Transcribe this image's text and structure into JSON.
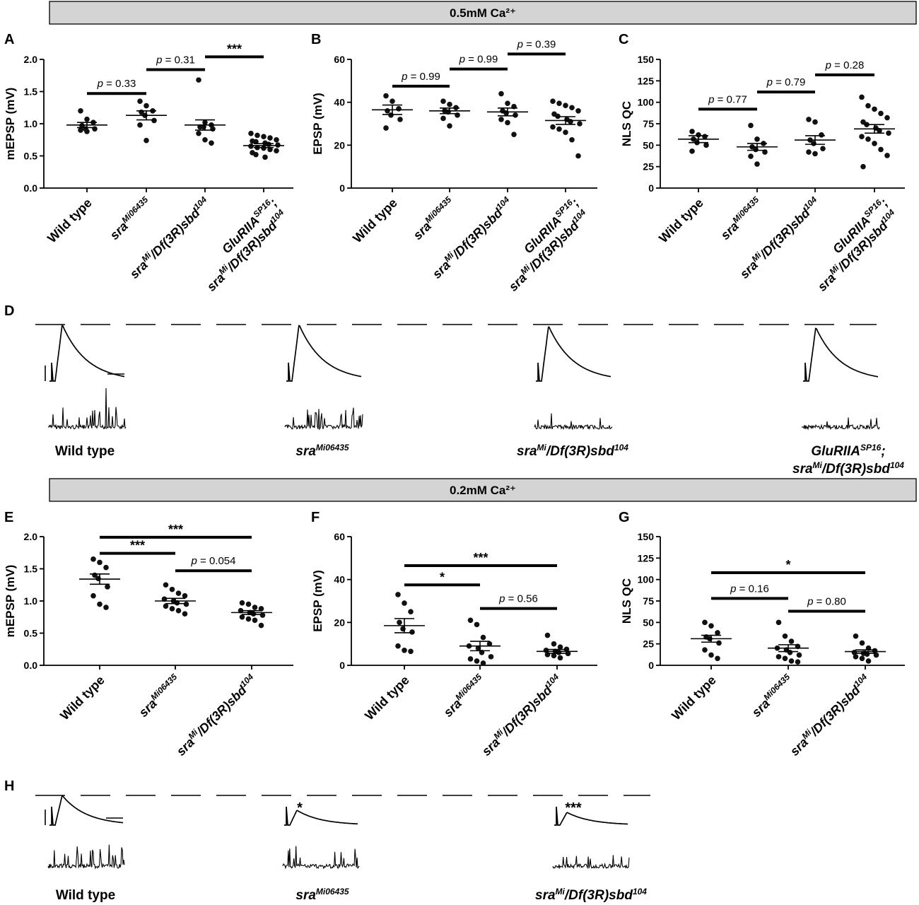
{
  "banners": {
    "top": "0.5mM Ca²⁺",
    "bottom": "0.2mM Ca²⁺"
  },
  "genotypes": {
    "wt": [
      {
        "t": "Wild type",
        "it": false
      }
    ],
    "sra": [
      {
        "t": "sra",
        "it": true
      },
      {
        "t": "Mi06435",
        "it": true,
        "sup": true
      }
    ],
    "sraDf": [
      {
        "t": "sra",
        "it": true
      },
      {
        "t": "Mi",
        "it": true,
        "sup": true
      },
      {
        "t": "/Df(3R)sbd",
        "it": true
      },
      {
        "t": "104",
        "it": true,
        "sup": true
      }
    ],
    "glu1": [
      {
        "t": "GluRIIA",
        "it": true
      },
      {
        "t": "SP16",
        "it": true,
        "sup": true
      },
      {
        "t": ";",
        "it": true
      }
    ],
    "glu2": [
      {
        "t": "sra",
        "it": true
      },
      {
        "t": "Mi",
        "it": true,
        "sup": true
      },
      {
        "t": "/Df(3R)sbd",
        "it": true
      },
      {
        "t": "104",
        "it": true,
        "sup": true
      }
    ]
  },
  "chart_data": [
    {
      "panel": "A",
      "type": "scatter",
      "ylabel": "mEPSP (mV)",
      "ylim": [
        0,
        2.0
      ],
      "yticks": [
        0,
        0.5,
        1.0,
        1.5,
        2.0
      ],
      "ytick_labels": [
        "0.0",
        "0.5",
        "1.0",
        "1.5",
        "2.0"
      ],
      "categories": [
        "Wild type",
        "sraMi06435",
        "sraMi/Df(3R)sbd104",
        "GluRIIASP16; sraMi/Df(3R)sbd104"
      ],
      "groups": [
        {
          "mean": 0.98,
          "sem": 0.04,
          "points": [
            1.2,
            1.07,
            1.02,
            0.97,
            0.92,
            0.92,
            0.9,
            0.88
          ]
        },
        {
          "mean": 1.13,
          "sem": 0.07,
          "points": [
            1.35,
            1.28,
            1.2,
            1.18,
            1.13,
            1.05,
            0.98,
            0.74
          ]
        },
        {
          "mean": 0.98,
          "sem": 0.08,
          "points": [
            1.68,
            1.02,
            0.98,
            0.95,
            0.95,
            0.92,
            0.85,
            0.75,
            0.7
          ]
        },
        {
          "mean": 0.66,
          "sem": 0.03,
          "points": [
            0.85,
            0.82,
            0.8,
            0.78,
            0.75,
            0.73,
            0.72,
            0.7,
            0.68,
            0.67,
            0.65,
            0.63,
            0.62,
            0.6,
            0.58,
            0.55,
            0.52,
            0.48
          ]
        }
      ],
      "comparisons": [
        {
          "from": 0,
          "to": 1,
          "y": 1.47,
          "label": "p = 0.33"
        },
        {
          "from": 1,
          "to": 2,
          "y": 1.84,
          "label": "p = 0.31"
        },
        {
          "from": 2,
          "to": 3,
          "y": 2.04,
          "label": "***"
        }
      ]
    },
    {
      "panel": "B",
      "type": "scatter",
      "ylabel": "EPSP (mV)",
      "ylim": [
        0,
        60
      ],
      "yticks": [
        0,
        20,
        40,
        60
      ],
      "ytick_labels": [
        "0",
        "20",
        "40",
        "60"
      ],
      "categories": [
        "Wild type",
        "sraMi06435",
        "sraMi/Df(3R)sbd104",
        "GluRIIASP16; sraMi/Df(3R)sbd104"
      ],
      "groups": [
        {
          "mean": 36.5,
          "sem": 2.2,
          "points": [
            43,
            40.5,
            37,
            36,
            34,
            32,
            28
          ]
        },
        {
          "mean": 36,
          "sem": 1.3,
          "points": [
            40.5,
            39,
            37.5,
            36,
            35.5,
            34,
            32.5,
            29
          ]
        },
        {
          "mean": 35.5,
          "sem": 1.8,
          "points": [
            44,
            39.5,
            38,
            36,
            35,
            34,
            32,
            30.5,
            25
          ]
        },
        {
          "mean": 31.5,
          "sem": 1.8,
          "points": [
            40.5,
            39.5,
            38.5,
            37.5,
            36,
            34.5,
            33.5,
            32,
            31,
            30,
            28.5,
            27.5,
            26,
            22.5,
            15
          ]
        }
      ],
      "comparisons": [
        {
          "from": 0,
          "to": 1,
          "y": 47.5,
          "label": "p = 0.99"
        },
        {
          "from": 1,
          "to": 2,
          "y": 55.5,
          "label": "p = 0.99"
        },
        {
          "from": 2,
          "to": 3,
          "y": 62.5,
          "label": "p = 0.39"
        }
      ]
    },
    {
      "panel": "C",
      "type": "scatter",
      "ylabel": "NLS QC",
      "ylim": [
        0,
        150
      ],
      "yticks": [
        0,
        25,
        50,
        75,
        100,
        125,
        150
      ],
      "ytick_labels": [
        "0",
        "25",
        "50",
        "75",
        "100",
        "125",
        "150"
      ],
      "categories": [
        "Wild type",
        "sraMi06435",
        "sraMi/Df(3R)sbd104",
        "GluRIIASP16; sraMi/Df(3R)sbd104"
      ],
      "groups": [
        {
          "mean": 57,
          "sem": 4,
          "points": [
            66,
            62,
            60,
            57,
            53,
            50,
            43
          ]
        },
        {
          "mean": 48,
          "sem": 4,
          "points": [
            73,
            57,
            52,
            48,
            45,
            42,
            37,
            28
          ]
        },
        {
          "mean": 56,
          "sem": 5,
          "points": [
            80,
            77,
            62,
            56,
            52,
            46,
            42,
            40
          ]
        },
        {
          "mean": 69,
          "sem": 5,
          "points": [
            106,
            96,
            92,
            87,
            82,
            77,
            74,
            70,
            67,
            64,
            60,
            57,
            52,
            45,
            38,
            25
          ]
        }
      ],
      "comparisons": [
        {
          "from": 0,
          "to": 1,
          "y": 92,
          "label": "p = 0.77"
        },
        {
          "from": 1,
          "to": 2,
          "y": 112,
          "label": "p = 0.79"
        },
        {
          "from": 2,
          "to": 3,
          "y": 132,
          "label": "p = 0.28"
        }
      ]
    },
    {
      "panel": "E",
      "type": "scatter",
      "ylabel": "mEPSP (mV)",
      "ylim": [
        0,
        2.0
      ],
      "yticks": [
        0,
        0.5,
        1.0,
        1.5,
        2.0
      ],
      "ytick_labels": [
        "0.0",
        "0.5",
        "1.0",
        "1.5",
        "2.0"
      ],
      "categories": [
        "Wild type",
        "sraMi06435",
        "sraMi/Df(3R)sbd104"
      ],
      "groups": [
        {
          "mean": 1.34,
          "sem": 0.08,
          "points": [
            1.65,
            1.6,
            1.52,
            1.4,
            1.35,
            1.22,
            1.08,
            0.95,
            0.9
          ]
        },
        {
          "mean": 1.0,
          "sem": 0.04,
          "points": [
            1.25,
            1.18,
            1.12,
            1.08,
            1.03,
            1.0,
            0.97,
            0.95,
            0.92,
            0.88,
            0.85,
            0.8
          ]
        },
        {
          "mean": 0.82,
          "sem": 0.03,
          "points": [
            0.97,
            0.95,
            0.9,
            0.88,
            0.85,
            0.82,
            0.8,
            0.78,
            0.75,
            0.72,
            0.7,
            0.62
          ]
        }
      ],
      "comparisons": [
        {
          "from": 0,
          "to": 2,
          "y": 1.99,
          "label": "***"
        },
        {
          "from": 0,
          "to": 1,
          "y": 1.74,
          "label": "***"
        },
        {
          "from": 1,
          "to": 2,
          "y": 1.47,
          "label": "p = 0.054"
        }
      ]
    },
    {
      "panel": "F",
      "type": "scatter",
      "ylabel": "EPSP (mV)",
      "ylim": [
        0,
        60
      ],
      "yticks": [
        0,
        20,
        40,
        60
      ],
      "ytick_labels": [
        "0",
        "20",
        "40",
        "60"
      ],
      "categories": [
        "Wild type",
        "sraMi06435",
        "sraMi/Df(3R)sbd104"
      ],
      "groups": [
        {
          "mean": 18.5,
          "sem": 3.3,
          "points": [
            33,
            29,
            25,
            20,
            17,
            15.5,
            9,
            7,
            6.5
          ]
        },
        {
          "mean": 9,
          "sem": 2.2,
          "points": [
            21,
            19,
            13,
            10,
            9,
            8,
            6,
            4,
            3,
            2,
            1
          ]
        },
        {
          "mean": 6.5,
          "sem": 0.9,
          "points": [
            14,
            10,
            8.5,
            7.5,
            7,
            6.5,
            6,
            5.5,
            5,
            4.5,
            3.5
          ]
        }
      ],
      "comparisons": [
        {
          "from": 0,
          "to": 2,
          "y": 46.5,
          "label": "***"
        },
        {
          "from": 0,
          "to": 1,
          "y": 37.5,
          "label": "*"
        },
        {
          "from": 1,
          "to": 2,
          "y": 26.5,
          "label": "p = 0.56"
        }
      ]
    },
    {
      "panel": "G",
      "type": "scatter",
      "ylabel": "NLS QC",
      "ylim": [
        0,
        150
      ],
      "yticks": [
        0,
        25,
        50,
        75,
        100,
        125,
        150
      ],
      "ytick_labels": [
        "0",
        "25",
        "50",
        "75",
        "100",
        "125",
        "150"
      ],
      "categories": [
        "Wild type",
        "sraMi06435",
        "sraMi/Df(3R)sbd104"
      ],
      "groups": [
        {
          "mean": 31,
          "sem": 4,
          "points": [
            50,
            46,
            38,
            33,
            31,
            26,
            18,
            12,
            8
          ]
        },
        {
          "mean": 20,
          "sem": 4,
          "points": [
            50,
            34,
            28,
            22,
            20,
            18,
            15,
            12,
            10,
            8,
            5,
            4
          ]
        },
        {
          "mean": 16,
          "sem": 2,
          "points": [
            34,
            26,
            20,
            17,
            15,
            14,
            13,
            12,
            10,
            8,
            5
          ]
        }
      ],
      "comparisons": [
        {
          "from": 0,
          "to": 2,
          "y": 108,
          "label": "*"
        },
        {
          "from": 0,
          "to": 1,
          "y": 78,
          "label": "p = 0.16"
        },
        {
          "from": 1,
          "to": 2,
          "y": 63,
          "label": "p = 0.80"
        }
      ]
    }
  ],
  "traces": {
    "D": {
      "panel": "D",
      "labels": [
        "wt",
        "sra",
        "sraDf",
        "glu"
      ]
    },
    "H": {
      "panel": "H",
      "labels": [
        "wt",
        "sra",
        "sraDf"
      ],
      "marks": [
        "",
        "*",
        "***"
      ]
    }
  }
}
